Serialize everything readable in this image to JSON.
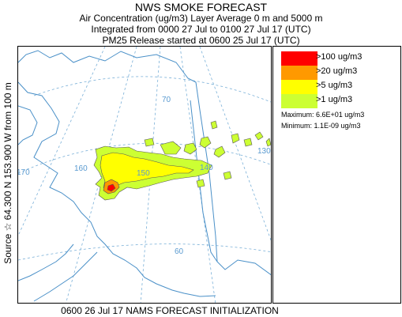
{
  "header": {
    "title": "NWS SMOKE FORECAST",
    "line2": "Air Concentration (ug/m3) Layer Average    0 m and  5000 m",
    "line3": "Integrated from 0000 27 Jul to 0100 27 Jul 17 (UTC)",
    "line4": "PM25 Release started at 0600 25 Jul 17 (UTC)"
  },
  "side_label": "Source ☆ 64.300 N 153.900 W from 100 m",
  "footer": "0600 26 Jul 17 NAMS FORECAST INITIALIZATION",
  "legend": {
    "items": [
      {
        "label": ">100 ug/m3",
        "color": "#ff0000"
      },
      {
        "label": ">20 ug/m3",
        "color": "#ff9900"
      },
      {
        "label": ">5 ug/m3",
        "color": "#ffff00"
      },
      {
        "label": ">1 ug/m3",
        "color": "#ccff33"
      }
    ],
    "maximum": "Maximum: 6.6E+01 ug/m3",
    "minimum": "Minimum: 1.1E-09 ug/m3"
  },
  "map": {
    "grid_labels": [
      "70",
      "170",
      "160",
      "150",
      "140",
      "130",
      "60"
    ],
    "colors": {
      "coast": "#4a90c8",
      "grid": "#7ab0d8",
      "plume_outline": "#555555"
    }
  }
}
